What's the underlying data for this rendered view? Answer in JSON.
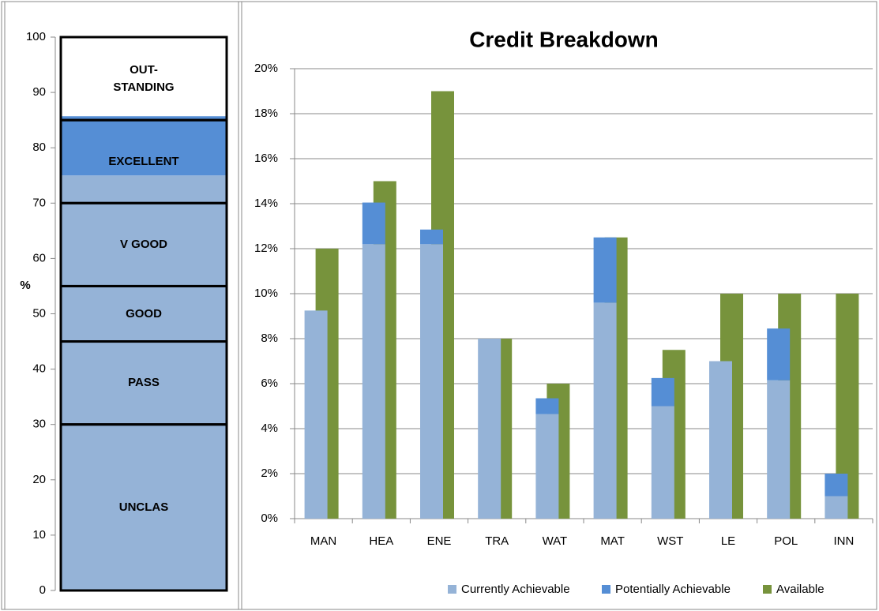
{
  "chart_data": [
    {
      "type": "gauge",
      "ylabel": "%",
      "ylim": [
        0,
        100
      ],
      "yticks": [
        0,
        10,
        20,
        30,
        40,
        50,
        60,
        70,
        80,
        90,
        100
      ],
      "fill": [
        {
          "value": 75,
          "color": "#95b3d7"
        },
        {
          "value": 10.7,
          "color": "#558ed5"
        }
      ],
      "bands": [
        {
          "label": "UNCLAS",
          "from": 0,
          "to": 30
        },
        {
          "label": "PASS",
          "from": 30,
          "to": 45
        },
        {
          "label": "GOOD",
          "from": 45,
          "to": 55
        },
        {
          "label": "V GOOD",
          "from": 55,
          "to": 70
        },
        {
          "label": "EXCELLENT",
          "from": 70,
          "to": 85
        },
        {
          "label": "OUT-STANDING",
          "from": 85,
          "to": 100
        }
      ]
    },
    {
      "type": "bar",
      "title": "Credit Breakdown",
      "categories": [
        "MAN",
        "HEA",
        "ENE",
        "TRA",
        "WAT",
        "MAT",
        "WST",
        "LE",
        "POL",
        "INN"
      ],
      "ylim": [
        0,
        20
      ],
      "yticks": [
        {
          "value": 0,
          "label": "0%"
        },
        {
          "value": 2,
          "label": "2%"
        },
        {
          "value": 4,
          "label": "4%"
        },
        {
          "value": 6,
          "label": "6%"
        },
        {
          "value": 8,
          "label": "8%"
        },
        {
          "value": 10,
          "label": "10%"
        },
        {
          "value": 12,
          "label": "12%"
        },
        {
          "value": 14,
          "label": "14%"
        },
        {
          "value": 16,
          "label": "16%"
        },
        {
          "value": 18,
          "label": "18%"
        },
        {
          "value": 20,
          "label": "20%"
        }
      ],
      "grid": true,
      "legend": "bottom",
      "series": [
        {
          "name": "Currently Achievable",
          "color": "#95b3d7",
          "values": [
            9.25,
            12.2,
            12.2,
            8,
            4.65,
            9.6,
            5,
            7,
            6.15,
            1
          ]
        },
        {
          "name": "Potentially Achievable",
          "color": "#558ed5",
          "values": [
            0,
            1.85,
            0.65,
            0,
            0.7,
            2.9,
            1.25,
            0,
            2.3,
            1
          ]
        },
        {
          "name": "Available",
          "color": "#77933c",
          "values": [
            12,
            15,
            19,
            8,
            6,
            12.5,
            7.5,
            10,
            10,
            10
          ]
        }
      ]
    }
  ]
}
